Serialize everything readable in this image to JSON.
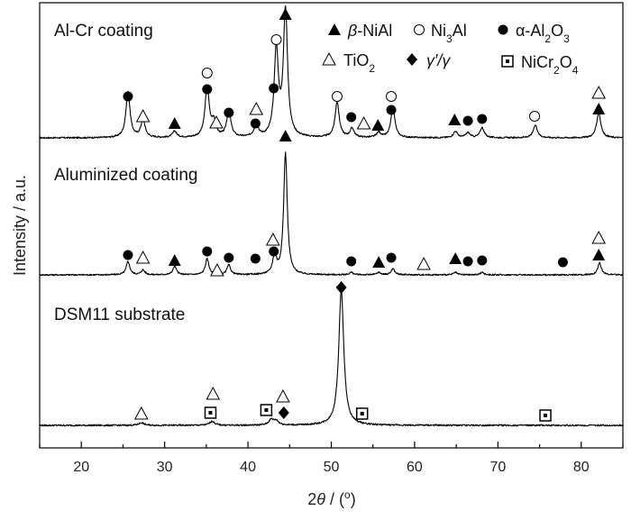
{
  "chart_data": {
    "type": "line",
    "xlabel": "2θ / (°)",
    "ylabel": "Intensity / a.u.",
    "xlim": [
      15,
      85
    ],
    "xticks": [
      "20",
      "30",
      "40",
      "50",
      "60",
      "70",
      "80"
    ],
    "y_ticks_shown": false,
    "legend_placement": "top",
    "legend": [
      {
        "symbol": "filled-triangle",
        "label": "β-NiAl"
      },
      {
        "symbol": "open-circle",
        "label": "Ni3Al"
      },
      {
        "symbol": "filled-circle",
        "label": "α-Al2O3"
      },
      {
        "symbol": "open-triangle",
        "label": "TiO2"
      },
      {
        "symbol": "filled-diamond",
        "label": "γ′/γ"
      },
      {
        "symbol": "boxed-dot",
        "label": "NiCr2O4"
      }
    ],
    "series": [
      {
        "name": "Al-Cr coating",
        "peaks": [
          [
            25.6,
            0.36
          ],
          [
            27.4,
            0.14
          ],
          [
            31.2,
            0.05
          ],
          [
            35.1,
            0.4
          ],
          [
            35.9,
            0.12
          ],
          [
            37.7,
            0.21
          ],
          [
            41.0,
            0.1
          ],
          [
            43.4,
            0.69
          ],
          [
            44.5,
            1.0
          ],
          [
            50.7,
            0.28
          ],
          [
            52.5,
            0.07
          ],
          [
            55.7,
            0.04
          ],
          [
            57.4,
            0.23
          ],
          [
            64.9,
            0.05
          ],
          [
            66.4,
            0.04
          ],
          [
            68.1,
            0.08
          ],
          [
            74.5,
            0.1
          ],
          [
            82.1,
            0.2
          ]
        ],
        "markers": [
          {
            "x": 25.6,
            "symbol": "filled-circle"
          },
          {
            "x": 27.4,
            "symbol": "open-triangle"
          },
          {
            "x": 31.2,
            "symbol": "filled-triangle"
          },
          {
            "x": 35.1,
            "symbol": "open-circle"
          },
          {
            "x": 35.1,
            "symbol": "filled-circle"
          },
          {
            "x": 36.2,
            "symbol": "open-triangle"
          },
          {
            "x": 37.7,
            "symbol": "filled-circle"
          },
          {
            "x": 41.0,
            "symbol": "open-triangle"
          },
          {
            "x": 40.9,
            "symbol": "filled-circle"
          },
          {
            "x": 43.4,
            "symbol": "open-circle"
          },
          {
            "x": 43.1,
            "symbol": "filled-circle"
          },
          {
            "x": 44.5,
            "symbol": "filled-triangle"
          },
          {
            "x": 44.5,
            "symbol": "filled-triangle"
          },
          {
            "x": 50.7,
            "symbol": "open-circle"
          },
          {
            "x": 52.4,
            "symbol": "filled-circle"
          },
          {
            "x": 53.9,
            "symbol": "open-triangle"
          },
          {
            "x": 55.6,
            "symbol": "filled-triangle"
          },
          {
            "x": 57.2,
            "symbol": "open-circle"
          },
          {
            "x": 57.2,
            "symbol": "filled-circle"
          },
          {
            "x": 64.8,
            "symbol": "filled-triangle"
          },
          {
            "x": 66.4,
            "symbol": "filled-circle"
          },
          {
            "x": 68.1,
            "symbol": "filled-circle"
          },
          {
            "x": 74.4,
            "symbol": "open-circle"
          },
          {
            "x": 82.1,
            "symbol": "open-triangle"
          },
          {
            "x": 82.1,
            "symbol": "filled-triangle"
          }
        ]
      },
      {
        "name": "Aluminized coating",
        "peaks": [
          [
            25.6,
            0.11
          ],
          [
            27.4,
            0.04
          ],
          [
            31.2,
            0.07
          ],
          [
            35.1,
            0.13
          ],
          [
            37.7,
            0.08
          ],
          [
            43.2,
            0.16
          ],
          [
            44.5,
            1.0
          ],
          [
            52.4,
            0.02
          ],
          [
            55.7,
            0.02
          ],
          [
            57.4,
            0.05
          ],
          [
            64.9,
            0.02
          ],
          [
            68.1,
            0.02
          ],
          [
            82.2,
            0.1
          ]
        ],
        "markers": [
          {
            "x": 25.6,
            "symbol": "filled-circle"
          },
          {
            "x": 27.4,
            "symbol": "open-triangle"
          },
          {
            "x": 31.2,
            "symbol": "filled-triangle"
          },
          {
            "x": 35.1,
            "symbol": "filled-circle"
          },
          {
            "x": 36.3,
            "symbol": "open-triangle"
          },
          {
            "x": 37.7,
            "symbol": "filled-circle"
          },
          {
            "x": 40.9,
            "symbol": "filled-circle"
          },
          {
            "x": 43.0,
            "symbol": "open-triangle"
          },
          {
            "x": 43.1,
            "symbol": "filled-circle"
          },
          {
            "x": 52.4,
            "symbol": "filled-circle"
          },
          {
            "x": 55.7,
            "symbol": "filled-triangle"
          },
          {
            "x": 57.2,
            "symbol": "filled-circle"
          },
          {
            "x": 61.1,
            "symbol": "open-triangle"
          },
          {
            "x": 64.9,
            "symbol": "filled-triangle"
          },
          {
            "x": 66.4,
            "symbol": "filled-circle"
          },
          {
            "x": 68.1,
            "symbol": "filled-circle"
          },
          {
            "x": 77.8,
            "symbol": "filled-circle"
          },
          {
            "x": 82.1,
            "symbol": "open-triangle"
          },
          {
            "x": 82.1,
            "symbol": "filled-triangle"
          }
        ]
      },
      {
        "name": "DSM11 substrate",
        "peaks": [
          [
            27.2,
            0.02
          ],
          [
            35.7,
            0.03
          ],
          [
            42.8,
            0.04
          ],
          [
            43.4,
            0.03
          ],
          [
            51.2,
            1.0
          ]
        ],
        "markers": [
          {
            "x": 27.2,
            "symbol": "open-triangle"
          },
          {
            "x": 35.8,
            "symbol": "open-triangle"
          },
          {
            "x": 35.5,
            "symbol": "boxed-dot"
          },
          {
            "x": 42.2,
            "symbol": "boxed-dot"
          },
          {
            "x": 44.2,
            "symbol": "open-triangle"
          },
          {
            "x": 44.3,
            "symbol": "filled-diamond"
          },
          {
            "x": 51.2,
            "symbol": "filled-diamond"
          },
          {
            "x": 53.7,
            "symbol": "boxed-dot"
          },
          {
            "x": 75.7,
            "symbol": "boxed-dot"
          }
        ]
      }
    ]
  }
}
